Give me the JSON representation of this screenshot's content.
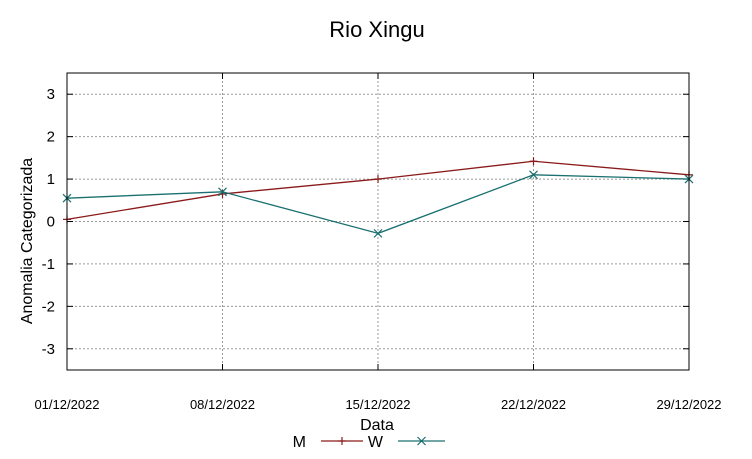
{
  "chart_data": {
    "type": "line",
    "title": "Rio Xingu",
    "xlabel": "Data",
    "ylabel": "Anomalia Categorizada",
    "categories": [
      "01/12/2022",
      "08/12/2022",
      "15/12/2022",
      "22/12/2022",
      "29/12/2022"
    ],
    "ylim": [
      -3.5,
      3.5
    ],
    "yticks": [
      -3,
      -2,
      -1,
      0,
      1,
      2,
      3
    ],
    "grid": true,
    "legend_position": "bottom",
    "series": [
      {
        "name": "M",
        "values": [
          0.05,
          0.65,
          1.0,
          1.42,
          1.1
        ],
        "color": "#8b1a1a",
        "marker": "plus"
      },
      {
        "name": "W",
        "values": [
          0.55,
          0.7,
          -0.28,
          1.1,
          1.0
        ],
        "color": "#1a7070",
        "marker": "cross"
      }
    ]
  }
}
